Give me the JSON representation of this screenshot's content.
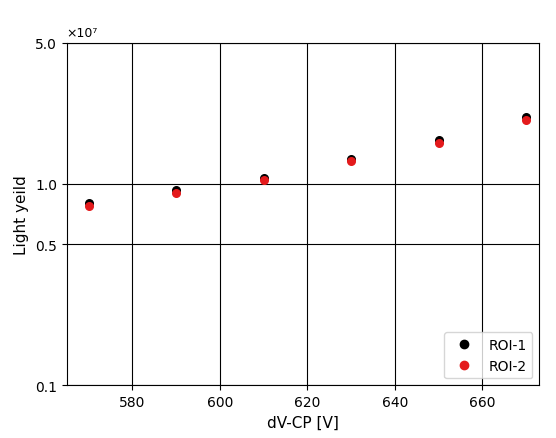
{
  "chart_data": {
    "type": "scatter",
    "x_label": "dV-CP [V]",
    "y_label": "Light yeild",
    "annotation": "×10⁷",
    "x": [
      570,
      590,
      610,
      630,
      650,
      670
    ],
    "series": [
      {
        "name": "ROI-1",
        "color": "#000000",
        "marker": "o",
        "values": [
          0.8,
          0.93,
          1.07,
          1.33,
          1.64,
          2.15
        ]
      },
      {
        "name": "ROI-2",
        "color": "#e41a1c",
        "marker": "o",
        "values": [
          0.78,
          0.9,
          1.04,
          1.29,
          1.6,
          2.08
        ]
      }
    ],
    "xlim": [
      565,
      673
    ],
    "xticks": [
      580,
      600,
      620,
      640,
      660
    ],
    "ylim": [
      0.1,
      5.0
    ],
    "yticks": [
      0.1,
      0.5,
      {
        "value": 1.0,
        "label": "1.0"
      },
      {
        "value": 5.0,
        "label": "5.0"
      }
    ],
    "log": "y",
    "grid": true,
    "legend": "lower right"
  }
}
